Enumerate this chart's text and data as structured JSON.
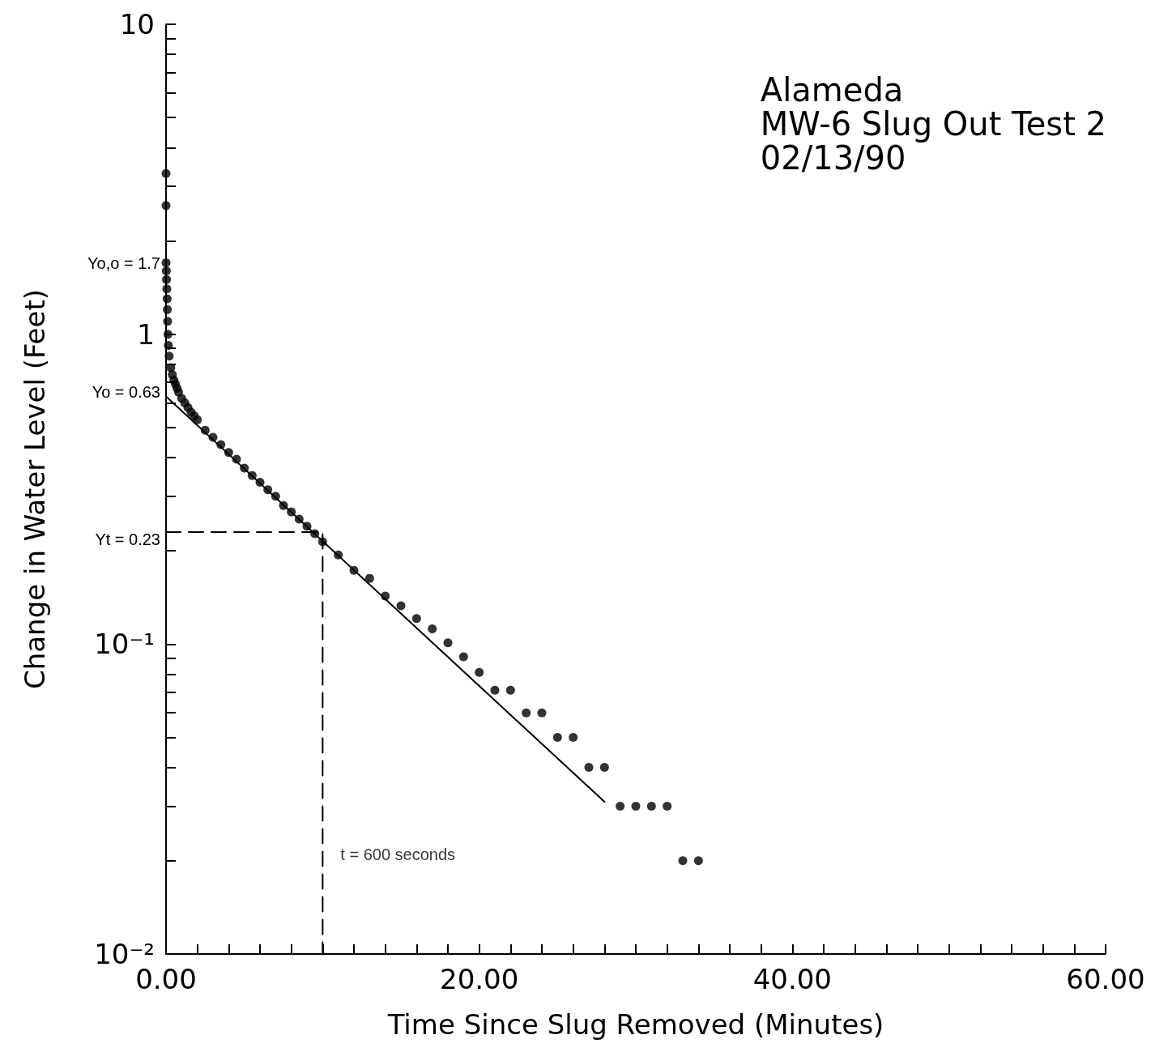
{
  "chart_data": {
    "type": "scatter",
    "title": "Alameda",
    "subtitle": "MW-6 Slug Out Test 2\n02/13/90",
    "xlabel": "Time Since Slug Removed (Minutes)",
    "ylabel": "Change in Water Level (Feet)",
    "log": "y",
    "xlim": [
      0,
      60
    ],
    "xticks": [
      {
        "value": 0,
        "label": "0.00"
      },
      {
        "value": 2,
        "label": null
      },
      {
        "value": 4,
        "label": null
      },
      {
        "value": 6,
        "label": null
      },
      {
        "value": 8,
        "label": null
      },
      {
        "value": 10,
        "label": null
      },
      {
        "value": 12,
        "label": null
      },
      {
        "value": 14,
        "label": null
      },
      {
        "value": 16,
        "label": null
      },
      {
        "value": 18,
        "label": null
      },
      {
        "value": 20,
        "label": "20.00"
      },
      {
        "value": 22,
        "label": null
      },
      {
        "value": 24,
        "label": null
      },
      {
        "value": 26,
        "label": null
      },
      {
        "value": 28,
        "label": null
      },
      {
        "value": 30,
        "label": null
      },
      {
        "value": 32,
        "label": null
      },
      {
        "value": 34,
        "label": null
      },
      {
        "value": 36,
        "label": null
      },
      {
        "value": 38,
        "label": null
      },
      {
        "value": 40,
        "label": "40.00"
      },
      {
        "value": 42,
        "label": null
      },
      {
        "value": 44,
        "label": null
      },
      {
        "value": 46,
        "label": null
      },
      {
        "value": 48,
        "label": null
      },
      {
        "value": 50,
        "label": null
      },
      {
        "value": 52,
        "label": null
      },
      {
        "value": 54,
        "label": null
      },
      {
        "value": 56,
        "label": null
      },
      {
        "value": 58,
        "label": null
      },
      {
        "value": 60,
        "label": "60.00"
      }
    ],
    "ylim": [
      0.01,
      10
    ],
    "yticks": [
      {
        "value": 0.01,
        "label": "10⁻²"
      },
      {
        "value": 0.02,
        "label": null
      },
      {
        "value": 0.03,
        "label": null
      },
      {
        "value": 0.04,
        "label": null
      },
      {
        "value": 0.05,
        "label": null
      },
      {
        "value": 0.06,
        "label": null
      },
      {
        "value": 0.07,
        "label": null
      },
      {
        "value": 0.08,
        "label": null
      },
      {
        "value": 0.09,
        "label": null
      },
      {
        "value": 0.1,
        "label": "10⁻¹"
      },
      {
        "value": 0.2,
        "label": null
      },
      {
        "value": 0.3,
        "label": null
      },
      {
        "value": 0.4,
        "label": null
      },
      {
        "value": 0.5,
        "label": null
      },
      {
        "value": 0.6,
        "label": null
      },
      {
        "value": 0.7,
        "label": null
      },
      {
        "value": 0.8,
        "label": null
      },
      {
        "value": 0.9,
        "label": null
      },
      1,
      {
        "value": 2,
        "label": null
      },
      {
        "value": 3,
        "label": null
      },
      {
        "value": 4,
        "label": null
      },
      {
        "value": 5,
        "label": null
      },
      {
        "value": 6,
        "label": null
      },
      {
        "value": 7,
        "label": null
      },
      {
        "value": 8,
        "label": null
      },
      {
        "value": 9,
        "label": null
      },
      10
    ],
    "grid": false,
    "marker": "circle",
    "series": [
      {
        "type": "scatter",
        "color": "#000000",
        "x": [
          0,
          0,
          0,
          0.02,
          0.03,
          0.05,
          0.07,
          0.08,
          0.1,
          0.12,
          0.15,
          0.2,
          0.3,
          0.4,
          0.5,
          0.6,
          0.7,
          0.8,
          1.0,
          1.2,
          1.4,
          1.6,
          1.8,
          2,
          2.5,
          3,
          3.5,
          4,
          4.5,
          5,
          5.5,
          6,
          6.5,
          7,
          7.5,
          8,
          8.5,
          9,
          9.5,
          10,
          11,
          12,
          13,
          14,
          15,
          16,
          17,
          18,
          19,
          20,
          21,
          22,
          23,
          24,
          25,
          26,
          27,
          28,
          29,
          30,
          31,
          32,
          33,
          34
        ],
        "values": [
          3.3,
          2.6,
          1.7,
          1.6,
          1.5,
          1.4,
          1.3,
          1.2,
          1.1,
          1.0,
          0.92,
          0.85,
          0.78,
          0.74,
          0.71,
          0.69,
          0.67,
          0.65,
          0.62,
          0.6,
          0.58,
          0.56,
          0.545,
          0.53,
          0.49,
          0.465,
          0.44,
          0.415,
          0.395,
          0.37,
          0.35,
          0.333,
          0.315,
          0.3,
          0.28,
          0.267,
          0.253,
          0.24,
          0.227,
          0.214,
          0.194,
          0.173,
          0.163,
          0.143,
          0.133,
          0.121,
          0.112,
          0.101,
          0.091,
          0.081,
          0.071,
          0.071,
          0.06,
          0.06,
          0.05,
          0.05,
          0.04,
          0.04,
          0.03,
          0.03,
          0.03,
          0.03,
          0.02,
          0.02
        ]
      },
      {
        "type": "line",
        "color": "#000000",
        "line_style": "solid",
        "marker": "none",
        "x": [
          0,
          28
        ],
        "values": [
          0.63,
          0.031
        ]
      },
      {
        "type": "line",
        "color": "#000000",
        "line_style": "dashed",
        "marker": "none",
        "x": [
          0,
          10,
          10
        ],
        "values": [
          0.23,
          0.23,
          0.01
        ]
      }
    ],
    "annotations": [
      "Yo,o = 1.7",
      "Yo = 0.63",
      "Yt = 0.23",
      {
        "text": "t = 600 seconds",
        "x": 10,
        "y": 0.02
      }
    ]
  }
}
